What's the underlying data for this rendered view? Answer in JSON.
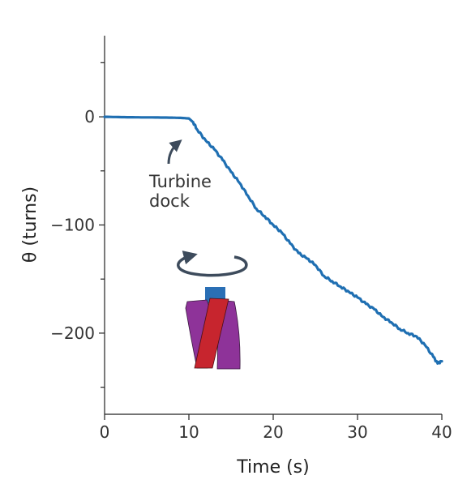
{
  "chart_data": {
    "type": "line",
    "xlabel": "Time (s)",
    "ylabel": "θ (turns)",
    "xlim": [
      0,
      40
    ],
    "ylim": [
      -275,
      75
    ],
    "x_ticks": [
      0,
      10,
      20,
      30,
      40
    ],
    "x_tick_labels": [
      "0",
      "10",
      "20",
      "30",
      "40"
    ],
    "y_ticks": [
      0,
      -100,
      -200
    ],
    "y_tick_labels": [
      "0",
      "−100",
      "−200"
    ],
    "y_minor_ticks": [
      50,
      -50,
      -150,
      -250
    ],
    "grid": false,
    "line_color": "#1f6fb2",
    "series": [
      {
        "x": [
          0,
          2,
          4,
          6,
          8,
          9,
          10,
          10.5,
          11,
          12,
          13,
          14,
          15,
          16,
          17,
          18,
          19,
          20,
          21,
          22,
          23,
          24,
          25,
          26,
          27,
          28,
          29,
          30,
          31,
          32,
          33,
          34,
          35,
          36,
          37,
          38,
          39,
          39.5,
          40
        ],
        "y": [
          0,
          -0.3,
          -0.5,
          -0.6,
          -0.8,
          -1,
          -1.5,
          -5,
          -12,
          -22,
          -30,
          -40,
          -51,
          -61,
          -73,
          -85,
          -92,
          -100,
          -107,
          -117,
          -126,
          -131,
          -137,
          -147,
          -152,
          -157,
          -162,
          -167,
          -173,
          -178,
          -185,
          -190,
          -196,
          -200,
          -203,
          -211,
          -222,
          -228,
          -226
        ]
      }
    ],
    "annotation": {
      "text_line1": "Turbine",
      "text_line2": "dock",
      "arrow_color": "#3d4b5c"
    },
    "illustration": {
      "rotation_arrow_color": "#3d4b5c",
      "cap_color": "#2a6fb5",
      "side_color": "#8e3399",
      "center_color": "#c7252e"
    }
  }
}
